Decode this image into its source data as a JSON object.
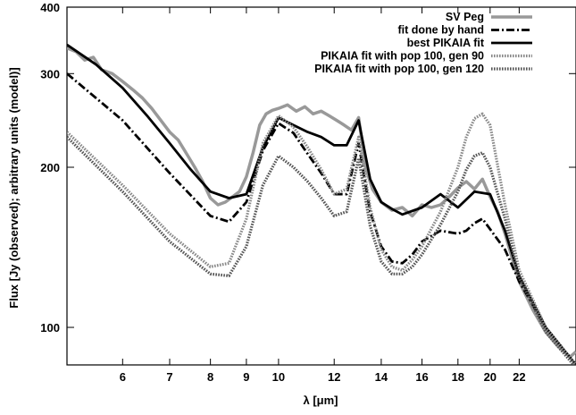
{
  "chart_data": {
    "type": "line",
    "xlabel": "λ [μm]",
    "ylabel": "Flux [Jy (observed); arbitrary units (model)]",
    "x_scale": "log",
    "y_scale": "log",
    "xlim": [
      5.0,
      26.5
    ],
    "ylim": [
      85,
      400
    ],
    "x_ticks": [
      6,
      7,
      8,
      9,
      10,
      12,
      14,
      16,
      18,
      20,
      22
    ],
    "y_ticks": [
      100,
      200,
      300,
      400
    ],
    "grid": false,
    "legend_position": "top-right",
    "series": [
      {
        "name": "SV Peg",
        "color": "#999999",
        "style": "solid",
        "x": [
          5.0,
          5.15,
          5.3,
          5.45,
          5.6,
          5.8,
          6.0,
          6.2,
          6.4,
          6.6,
          6.8,
          7.0,
          7.2,
          7.4,
          7.6,
          7.8,
          8.0,
          8.2,
          8.4,
          8.6,
          8.8,
          9.0,
          9.2,
          9.4,
          9.6,
          9.8,
          10.0,
          10.3,
          10.6,
          10.9,
          11.2,
          11.5,
          11.8,
          12.1,
          12.4,
          12.7,
          13.0,
          13.3,
          13.6,
          14.0,
          14.5,
          15.0,
          15.5,
          16.0,
          16.5,
          17.0,
          17.5,
          18.0,
          18.5,
          19.0,
          19.5,
          20.0,
          20.5,
          21.0,
          21.5,
          22.0,
          23.0,
          24.0,
          25.0,
          26.0,
          26.5
        ],
        "y": [
          335,
          330,
          318,
          322,
          305,
          300,
          290,
          280,
          270,
          258,
          245,
          233,
          225,
          212,
          200,
          188,
          175,
          170,
          172,
          176,
          180,
          192,
          213,
          240,
          252,
          256,
          258,
          262,
          255,
          260,
          252,
          255,
          250,
          245,
          240,
          235,
          248,
          200,
          182,
          172,
          166,
          168,
          162,
          170,
          168,
          170,
          176,
          183,
          188,
          182,
          190,
          176,
          165,
          150,
          135,
          122,
          108,
          98,
          92,
          88,
          90
        ]
      },
      {
        "name": "fit done by hand",
        "color": "#000000",
        "style": "dash-dot",
        "x": [
          5.0,
          6.0,
          7.0,
          8.0,
          8.5,
          9.0,
          9.5,
          10.0,
          10.5,
          11.0,
          11.5,
          12.0,
          12.5,
          13.0,
          13.5,
          14.0,
          14.5,
          15.0,
          15.5,
          16.0,
          17.0,
          18.0,
          18.5,
          19.0,
          19.5,
          20.0,
          21.0,
          22.0,
          24.0,
          26.5
        ],
        "y": [
          300,
          245,
          195,
          162,
          158,
          172,
          215,
          242,
          232,
          212,
          195,
          178,
          178,
          222,
          165,
          142,
          133,
          132,
          137,
          145,
          152,
          150,
          152,
          157,
          160,
          153,
          140,
          122,
          100,
          85
        ]
      },
      {
        "name": "best PIKAIA fit",
        "color": "#000000",
        "style": "solid",
        "x": [
          5.0,
          5.5,
          6.0,
          6.5,
          7.0,
          7.5,
          8.0,
          8.5,
          9.0,
          9.5,
          10.0,
          10.5,
          11.0,
          11.5,
          12.0,
          12.5,
          13.0,
          13.5,
          14.0,
          14.5,
          15.0,
          16.0,
          17.0,
          18.0,
          19.0,
          20.0,
          21.0,
          22.0,
          24.0,
          26.5
        ],
        "y": [
          340,
          312,
          282,
          250,
          222,
          198,
          180,
          175,
          178,
          218,
          248,
          240,
          233,
          228,
          220,
          220,
          245,
          190,
          172,
          167,
          163,
          168,
          178,
          168,
          180,
          178,
          152,
          125,
          100,
          85
        ]
      },
      {
        "name": "PIKAIA fit with pop 100, gen 90",
        "color": "#888888",
        "style": "dotted",
        "x": [
          5.0,
          6.0,
          7.0,
          8.0,
          8.5,
          9.0,
          9.5,
          10.0,
          10.5,
          11.0,
          11.5,
          12.0,
          12.5,
          13.0,
          13.5,
          14.0,
          14.5,
          15.0,
          15.5,
          16.0,
          17.0,
          18.0,
          18.5,
          19.0,
          19.5,
          20.0,
          21.0,
          22.0,
          24.0,
          26.5
        ],
        "y": [
          233,
          185,
          150,
          130,
          132,
          160,
          222,
          250,
          238,
          218,
          198,
          178,
          182,
          228,
          168,
          140,
          130,
          128,
          134,
          142,
          165,
          200,
          228,
          247,
          252,
          240,
          170,
          128,
          100,
          85
        ]
      },
      {
        "name": "PIKAIA fit with pop 100, gen 120",
        "color": "#555555",
        "style": "dotted",
        "x": [
          5.0,
          6.0,
          7.0,
          8.0,
          8.5,
          9.0,
          9.5,
          10.0,
          10.5,
          11.0,
          11.5,
          12.0,
          12.5,
          13.0,
          13.5,
          14.0,
          14.5,
          15.0,
          15.5,
          16.0,
          17.0,
          18.0,
          18.5,
          19.0,
          19.5,
          20.0,
          21.0,
          22.0,
          24.0,
          26.5
        ],
        "y": [
          228,
          180,
          145,
          126,
          125,
          142,
          185,
          210,
          200,
          188,
          175,
          162,
          165,
          208,
          155,
          133,
          126,
          126,
          130,
          137,
          156,
          180,
          198,
          210,
          213,
          200,
          160,
          124,
          98,
          84
        ]
      }
    ]
  }
}
